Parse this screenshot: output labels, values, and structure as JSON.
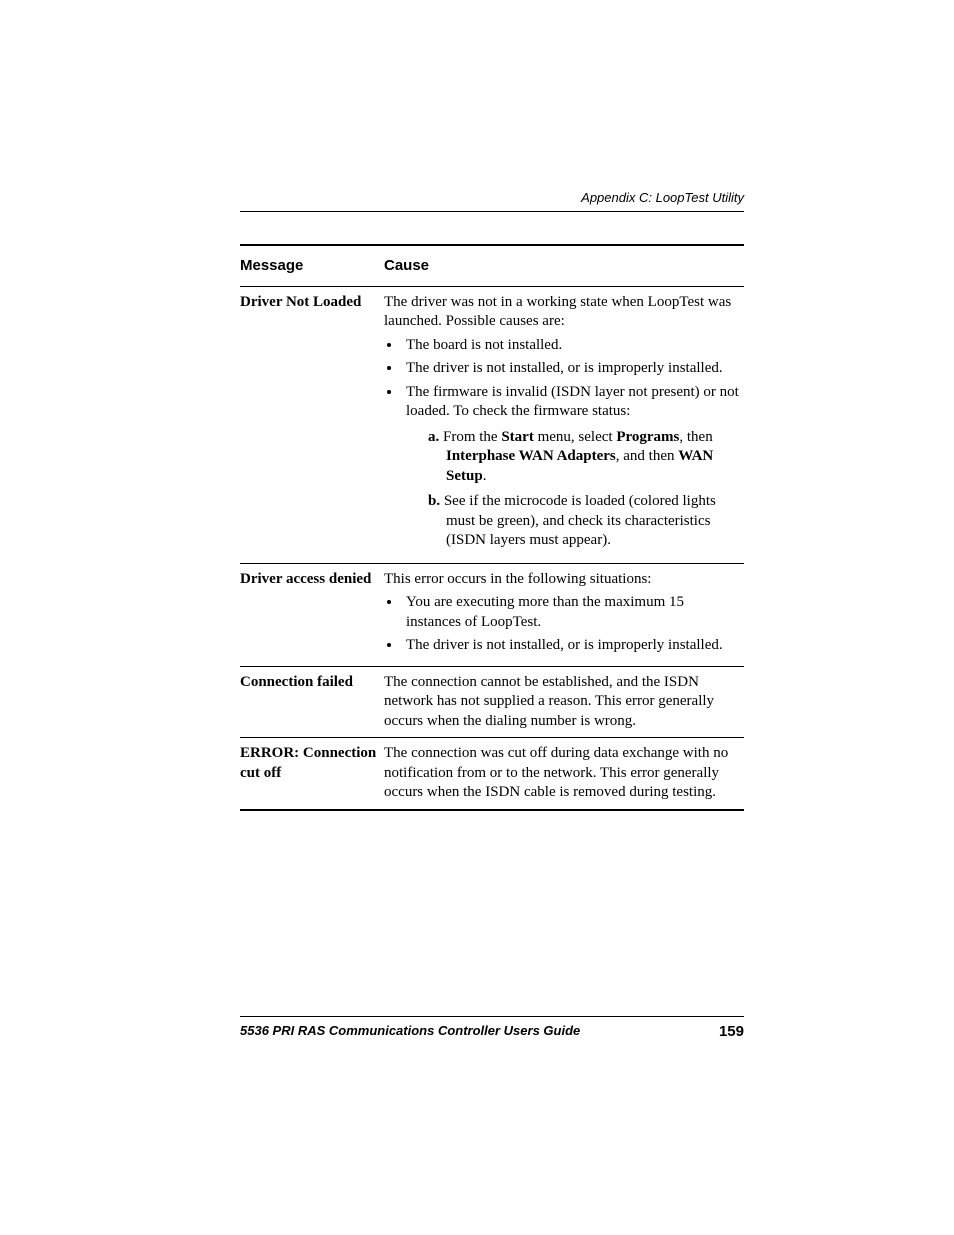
{
  "header": {
    "appendix": "Appendix C: LoopTest Utility"
  },
  "table": {
    "head": {
      "message": "Message",
      "cause": "Cause"
    },
    "rows": [
      {
        "message": "Driver Not Loaded",
        "intro": "The driver was not in a working state when LoopTest was launched. Possible causes are:",
        "bullets": [
          "The board is not installed.",
          "The driver is not installed, or is improperly installed.",
          "The firmware is invalid (ISDN layer not present) or not loaded. To check the firmware status:"
        ],
        "steps": [
          {
            "lead": "a.",
            "pre": " From the ",
            "b1": "Start",
            "mid1": " menu, select ",
            "b2": "Programs",
            "mid2": ", then ",
            "b3": "Interphase WAN Adapters",
            "mid3": ", and then ",
            "b4": "WAN Setup",
            "post": "."
          },
          {
            "lead": "b.",
            "text": " See if the microcode is loaded (colored lights must be green), and check its characteristics (ISDN layers must appear)."
          }
        ]
      },
      {
        "message": "Driver access denied",
        "intro": "This error occurs in the following situations:",
        "bullets": [
          "You are executing more than the maximum 15 instances of LoopTest.",
          "The driver is not installed, or is improperly installed."
        ]
      },
      {
        "message": "Connection failed",
        "text": "The connection cannot be established, and the ISDN network has not supplied a reason. This error generally occurs when the dialing number is wrong."
      },
      {
        "message": "ERROR: Connection cut off",
        "text": "The connection was cut off during data exchange with no notification from or to the network. This error generally occurs when the ISDN cable is removed during testing."
      }
    ]
  },
  "footer": {
    "title": "5536 PRI RAS Communications Controller Users Guide",
    "page": "159"
  }
}
